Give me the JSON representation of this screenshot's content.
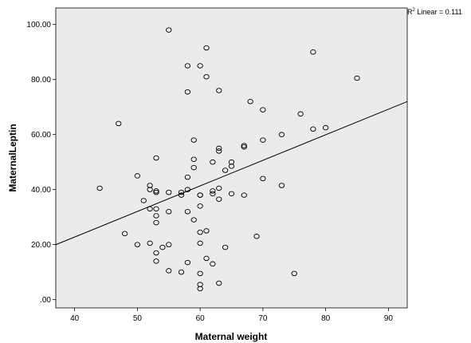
{
  "chart_data": {
    "type": "scatter",
    "xlabel": "Maternal weight",
    "ylabel": "MaternalLeptin",
    "xlim": [
      37,
      93
    ],
    "ylim": [
      -3,
      106
    ],
    "x_ticks": [
      40,
      50,
      60,
      70,
      80,
      90
    ],
    "x_tick_labels": [
      "40",
      "50",
      "60",
      "70",
      "80",
      "90"
    ],
    "y_ticks": [
      0,
      20,
      40,
      60,
      80,
      100
    ],
    "y_tick_labels": [
      ".00",
      "20.00",
      "40.00",
      "60.00",
      "80.00",
      "100.00"
    ],
    "grid": false,
    "plot_background": "#ebebeb",
    "marker_color": "#000000",
    "fit_line": {
      "slope": 0.929,
      "intercept": -14.4,
      "color": "#000000"
    },
    "r2_label": {
      "prefix": "R",
      "superscript": "2",
      "text": " Linear = 0.111"
    },
    "points": [
      {
        "x": 55,
        "y": 98
      },
      {
        "x": 61,
        "y": 91.5
      },
      {
        "x": 78,
        "y": 90
      },
      {
        "x": 58,
        "y": 85
      },
      {
        "x": 60,
        "y": 85
      },
      {
        "x": 61,
        "y": 81
      },
      {
        "x": 85,
        "y": 80.5
      },
      {
        "x": 58,
        "y": 75.5
      },
      {
        "x": 63,
        "y": 76
      },
      {
        "x": 68,
        "y": 72
      },
      {
        "x": 70,
        "y": 69
      },
      {
        "x": 76,
        "y": 67.5
      },
      {
        "x": 47,
        "y": 64
      },
      {
        "x": 78,
        "y": 62
      },
      {
        "x": 80,
        "y": 62.5
      },
      {
        "x": 73,
        "y": 60
      },
      {
        "x": 59,
        "y": 58
      },
      {
        "x": 70,
        "y": 58
      },
      {
        "x": 67,
        "y": 56
      },
      {
        "x": 67,
        "y": 55.5
      },
      {
        "x": 63,
        "y": 55
      },
      {
        "x": 63,
        "y": 54
      },
      {
        "x": 53,
        "y": 51.5
      },
      {
        "x": 59,
        "y": 51
      },
      {
        "x": 62,
        "y": 50
      },
      {
        "x": 65,
        "y": 50
      },
      {
        "x": 65,
        "y": 48.5
      },
      {
        "x": 59,
        "y": 48
      },
      {
        "x": 64,
        "y": 47
      },
      {
        "x": 50,
        "y": 45
      },
      {
        "x": 58,
        "y": 44.5
      },
      {
        "x": 70,
        "y": 44
      },
      {
        "x": 73,
        "y": 41.5
      },
      {
        "x": 52,
        "y": 41.5
      },
      {
        "x": 44,
        "y": 40.5
      },
      {
        "x": 52,
        "y": 40
      },
      {
        "x": 53,
        "y": 39.5
      },
      {
        "x": 53,
        "y": 39
      },
      {
        "x": 55,
        "y": 39
      },
      {
        "x": 57,
        "y": 39
      },
      {
        "x": 57,
        "y": 38
      },
      {
        "x": 58,
        "y": 40
      },
      {
        "x": 60,
        "y": 38
      },
      {
        "x": 60,
        "y": 38
      },
      {
        "x": 62,
        "y": 38.5
      },
      {
        "x": 62,
        "y": 39.5
      },
      {
        "x": 63,
        "y": 40.5
      },
      {
        "x": 65,
        "y": 38.5
      },
      {
        "x": 67,
        "y": 38
      },
      {
        "x": 51,
        "y": 36
      },
      {
        "x": 63,
        "y": 36.5
      },
      {
        "x": 60,
        "y": 34
      },
      {
        "x": 52,
        "y": 33
      },
      {
        "x": 53,
        "y": 33
      },
      {
        "x": 55,
        "y": 32
      },
      {
        "x": 58,
        "y": 32
      },
      {
        "x": 53,
        "y": 30.5
      },
      {
        "x": 59,
        "y": 29
      },
      {
        "x": 53,
        "y": 28
      },
      {
        "x": 61,
        "y": 25
      },
      {
        "x": 60,
        "y": 24.5
      },
      {
        "x": 48,
        "y": 24
      },
      {
        "x": 69,
        "y": 23
      },
      {
        "x": 52,
        "y": 20.5
      },
      {
        "x": 50,
        "y": 20
      },
      {
        "x": 55,
        "y": 20
      },
      {
        "x": 60,
        "y": 20.5
      },
      {
        "x": 54,
        "y": 19
      },
      {
        "x": 64,
        "y": 19
      },
      {
        "x": 53,
        "y": 17
      },
      {
        "x": 61,
        "y": 15
      },
      {
        "x": 53,
        "y": 14
      },
      {
        "x": 58,
        "y": 13.5
      },
      {
        "x": 62,
        "y": 13
      },
      {
        "x": 55,
        "y": 10.5
      },
      {
        "x": 57,
        "y": 10
      },
      {
        "x": 60,
        "y": 9.5
      },
      {
        "x": 75,
        "y": 9.5
      },
      {
        "x": 63,
        "y": 6
      },
      {
        "x": 60,
        "y": 5.5
      },
      {
        "x": 60,
        "y": 4
      }
    ]
  }
}
